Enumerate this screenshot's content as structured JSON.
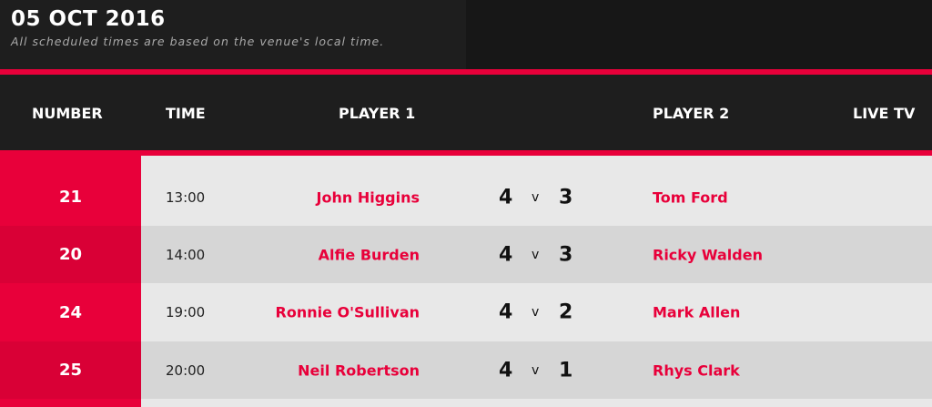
{
  "header": {
    "date": "05 OCT 2016",
    "note": "All scheduled times are based on the venue's local time."
  },
  "columns": {
    "number": "NUMBER",
    "time": "TIME",
    "player1": "PLAYER 1",
    "player2": "PLAYER 2",
    "live_tv": "LIVE TV"
  },
  "colors": {
    "accent": "#e8003a",
    "row_light": "#e8e8e8",
    "row_dark": "#d6d6d6"
  },
  "matches": [
    {
      "number": "21",
      "time": "13:00",
      "player1": "John Higgins",
      "score1": "4",
      "vs": "v",
      "score2": "3",
      "player2": "Tom Ford"
    },
    {
      "number": "20",
      "time": "14:00",
      "player1": "Alfie Burden",
      "score1": "4",
      "vs": "v",
      "score2": "3",
      "player2": "Ricky Walden"
    },
    {
      "number": "24",
      "time": "19:00",
      "player1": "Ronnie O'Sullivan",
      "score1": "4",
      "vs": "v",
      "score2": "2",
      "player2": "Mark Allen"
    },
    {
      "number": "25",
      "time": "20:00",
      "player1": "Neil Robertson",
      "score1": "4",
      "vs": "v",
      "score2": "1",
      "player2": "Rhys Clark"
    }
  ]
}
